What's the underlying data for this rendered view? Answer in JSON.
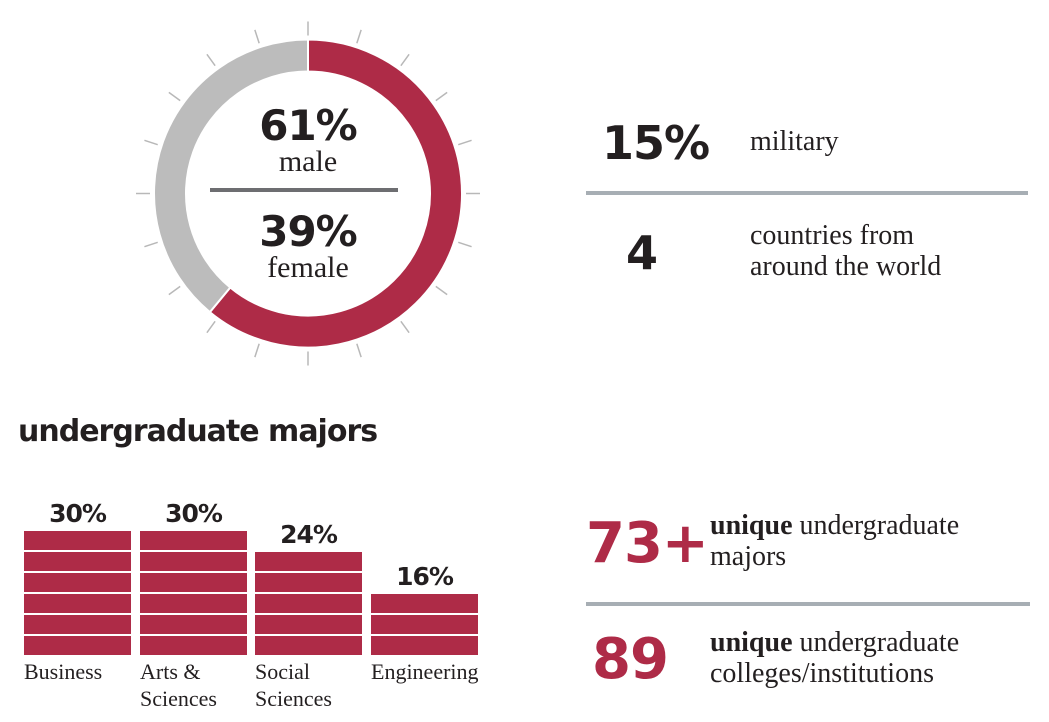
{
  "colors": {
    "accent": "#ae2b47",
    "gray_ring": "#bcbcbc",
    "tick": "#b8b8b8",
    "text": "#231f20",
    "divider": "#a7aeb4",
    "donut_divider": "#6d6e71"
  },
  "donut": {
    "male_value": "61%",
    "male_label": "male",
    "female_value": "39%",
    "female_label": "female"
  },
  "stats_top": [
    {
      "value": "15%",
      "label_lines": [
        "military"
      ]
    },
    {
      "value": "4",
      "label_lines": [
        "countries from",
        "around the world"
      ]
    }
  ],
  "majors_section": {
    "title": "undergraduate majors"
  },
  "stats_bottom": [
    {
      "value": "73+",
      "bold": "unique",
      "rest_line1": " undergraduate",
      "line2": "majors"
    },
    {
      "value": "89",
      "bold": "unique",
      "rest_line1": " undergraduate",
      "line2": "colleges/institutions"
    }
  ],
  "chart_data": [
    {
      "type": "pie",
      "title": "",
      "labels": [
        "male",
        "female"
      ],
      "values": [
        61,
        39
      ],
      "colors": [
        "#ae2b47",
        "#bcbcbc"
      ],
      "style": "donut"
    },
    {
      "type": "bar",
      "title": "undergraduate majors",
      "categories": [
        "Business",
        "Arts & Sciences",
        "Social Sciences",
        "Engineering"
      ],
      "category_lines": [
        [
          "Business"
        ],
        [
          "Arts &",
          "Sciences"
        ],
        [
          "Social",
          "Sciences"
        ],
        [
          "Engineering"
        ]
      ],
      "values": [
        30,
        30,
        24,
        16
      ],
      "value_labels": [
        "30%",
        "30%",
        "24%",
        "16%"
      ],
      "bands": [
        6,
        6,
        5,
        3
      ],
      "xlabel": "",
      "ylabel": "",
      "color": "#ae2b47"
    }
  ]
}
